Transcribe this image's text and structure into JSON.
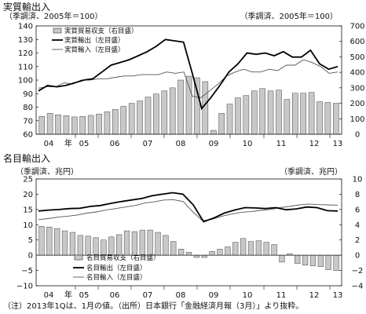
{
  "chart_data": [
    {
      "type": "bar+line",
      "title": "実質輸出入",
      "left_axis_label": "（季調済、2005年＝100）",
      "right_axis_label": "（季調済、2005年＝100）",
      "left_ylim": [
        60,
        140
      ],
      "left_ticks": [
        "60",
        "70",
        "80",
        "90",
        "100",
        "110",
        "120",
        "130",
        "140"
      ],
      "right_ylim": [
        0,
        700
      ],
      "right_ticks": [
        "0",
        "100",
        "200",
        "300",
        "400",
        "500",
        "600",
        "700"
      ],
      "x_labels": [
        "04",
        "年",
        "05",
        "06",
        "07",
        "08",
        "09",
        "10",
        "11",
        "12",
        "13"
      ],
      "legend": [
        {
          "name": "実質貿易収支（右目盛）",
          "kind": "bar"
        },
        {
          "name": "実質輸出（左目盛）",
          "kind": "thick-line"
        },
        {
          "name": "実質輸入（左目盛）",
          "kind": "thin-line"
        }
      ],
      "bars": [
        115,
        135,
        125,
        120,
        112,
        115,
        122,
        130,
        145,
        160,
        180,
        200,
        215,
        240,
        260,
        280,
        300,
        350,
        375,
        365,
        340,
        25,
        135,
        195,
        235,
        250,
        280,
        295,
        280,
        285,
        225,
        265,
        265,
        270,
        210,
        205,
        200
      ],
      "exports": [
        92,
        96,
        95,
        96,
        98,
        100,
        101,
        106,
        111,
        113,
        115,
        118,
        121,
        125,
        130,
        129,
        128,
        104,
        79,
        87,
        96,
        106,
        112,
        120,
        119,
        120,
        118,
        121,
        117,
        117,
        122,
        112,
        108,
        110
      ],
      "imports": [
        94,
        95,
        95,
        98,
        97,
        100,
        100,
        101,
        101,
        102,
        103,
        103,
        104,
        104,
        104,
        106,
        105,
        106,
        88,
        87,
        92,
        97,
        103,
        106,
        108,
        106,
        106,
        108,
        107,
        111,
        111,
        115,
        113,
        110,
        105,
        106
      ]
    },
    {
      "type": "bar+line",
      "title": "名目輸出入",
      "left_axis_label": "（季調済、兆円）",
      "right_axis_label": "（季調済、兆円）",
      "left_ylim": [
        -10,
        25
      ],
      "left_ticks": [
        "−10",
        "−5",
        "0",
        "5",
        "10",
        "15",
        "20",
        "25"
      ],
      "right_ylim": [
        -4,
        10
      ],
      "right_ticks": [
        "−4",
        "−2",
        "0",
        "2",
        "4",
        "6",
        "8",
        "10"
      ],
      "x_labels": [
        "04",
        "年",
        "05",
        "06",
        "07",
        "08",
        "09",
        "10",
        "11",
        "12",
        "13"
      ],
      "legend": [
        {
          "name": "名目貿易収支（右目盛）",
          "kind": "bar"
        },
        {
          "name": "名目輸出（左目盛）",
          "kind": "thick-line"
        },
        {
          "name": "名目輸入（左目盛）",
          "kind": "thin-line"
        }
      ],
      "bars": [
        3.8,
        3.7,
        3.5,
        3.2,
        3.0,
        2.6,
        2.5,
        2.3,
        2.0,
        2.4,
        2.7,
        3.2,
        3.1,
        3.3,
        3.3,
        3.0,
        2.6,
        1.8,
        0.8,
        0.4,
        -0.3,
        -0.3,
        0.5,
        0.8,
        1.1,
        1.7,
        2.2,
        1.8,
        1.9,
        1.7,
        1.4,
        -0.9,
        0.2,
        -1.1,
        -1.3,
        -1.4,
        -1.5,
        -1.9,
        -2.0
      ],
      "exports": [
        14.5,
        14.8,
        15,
        15.3,
        15.4,
        16,
        16.3,
        17,
        17.6,
        18.1,
        18.6,
        19.5,
        20,
        20.5,
        20,
        16.5,
        11,
        12.2,
        13.8,
        14.8,
        15.6,
        15.5,
        15.3,
        15.6,
        14.9,
        15.2,
        15.8,
        15.6,
        14.6,
        14.5
      ],
      "imports": [
        11.7,
        12,
        12.5,
        12.8,
        13.2,
        13.8,
        14.2,
        14.8,
        15.3,
        15.8,
        16.3,
        17.1,
        17.5,
        18.1,
        18.2,
        17.6,
        14.2,
        11.3,
        11.8,
        12.8,
        13.5,
        14.1,
        14.3,
        14.7,
        15,
        15.6,
        16,
        16.5,
        16.8,
        16.6,
        16.5,
        16.4
      ]
    }
  ],
  "note": "（注）2013年1Qは、1月の値。（出所）日本銀行「金融経済月報（3月）」より抜粋。"
}
